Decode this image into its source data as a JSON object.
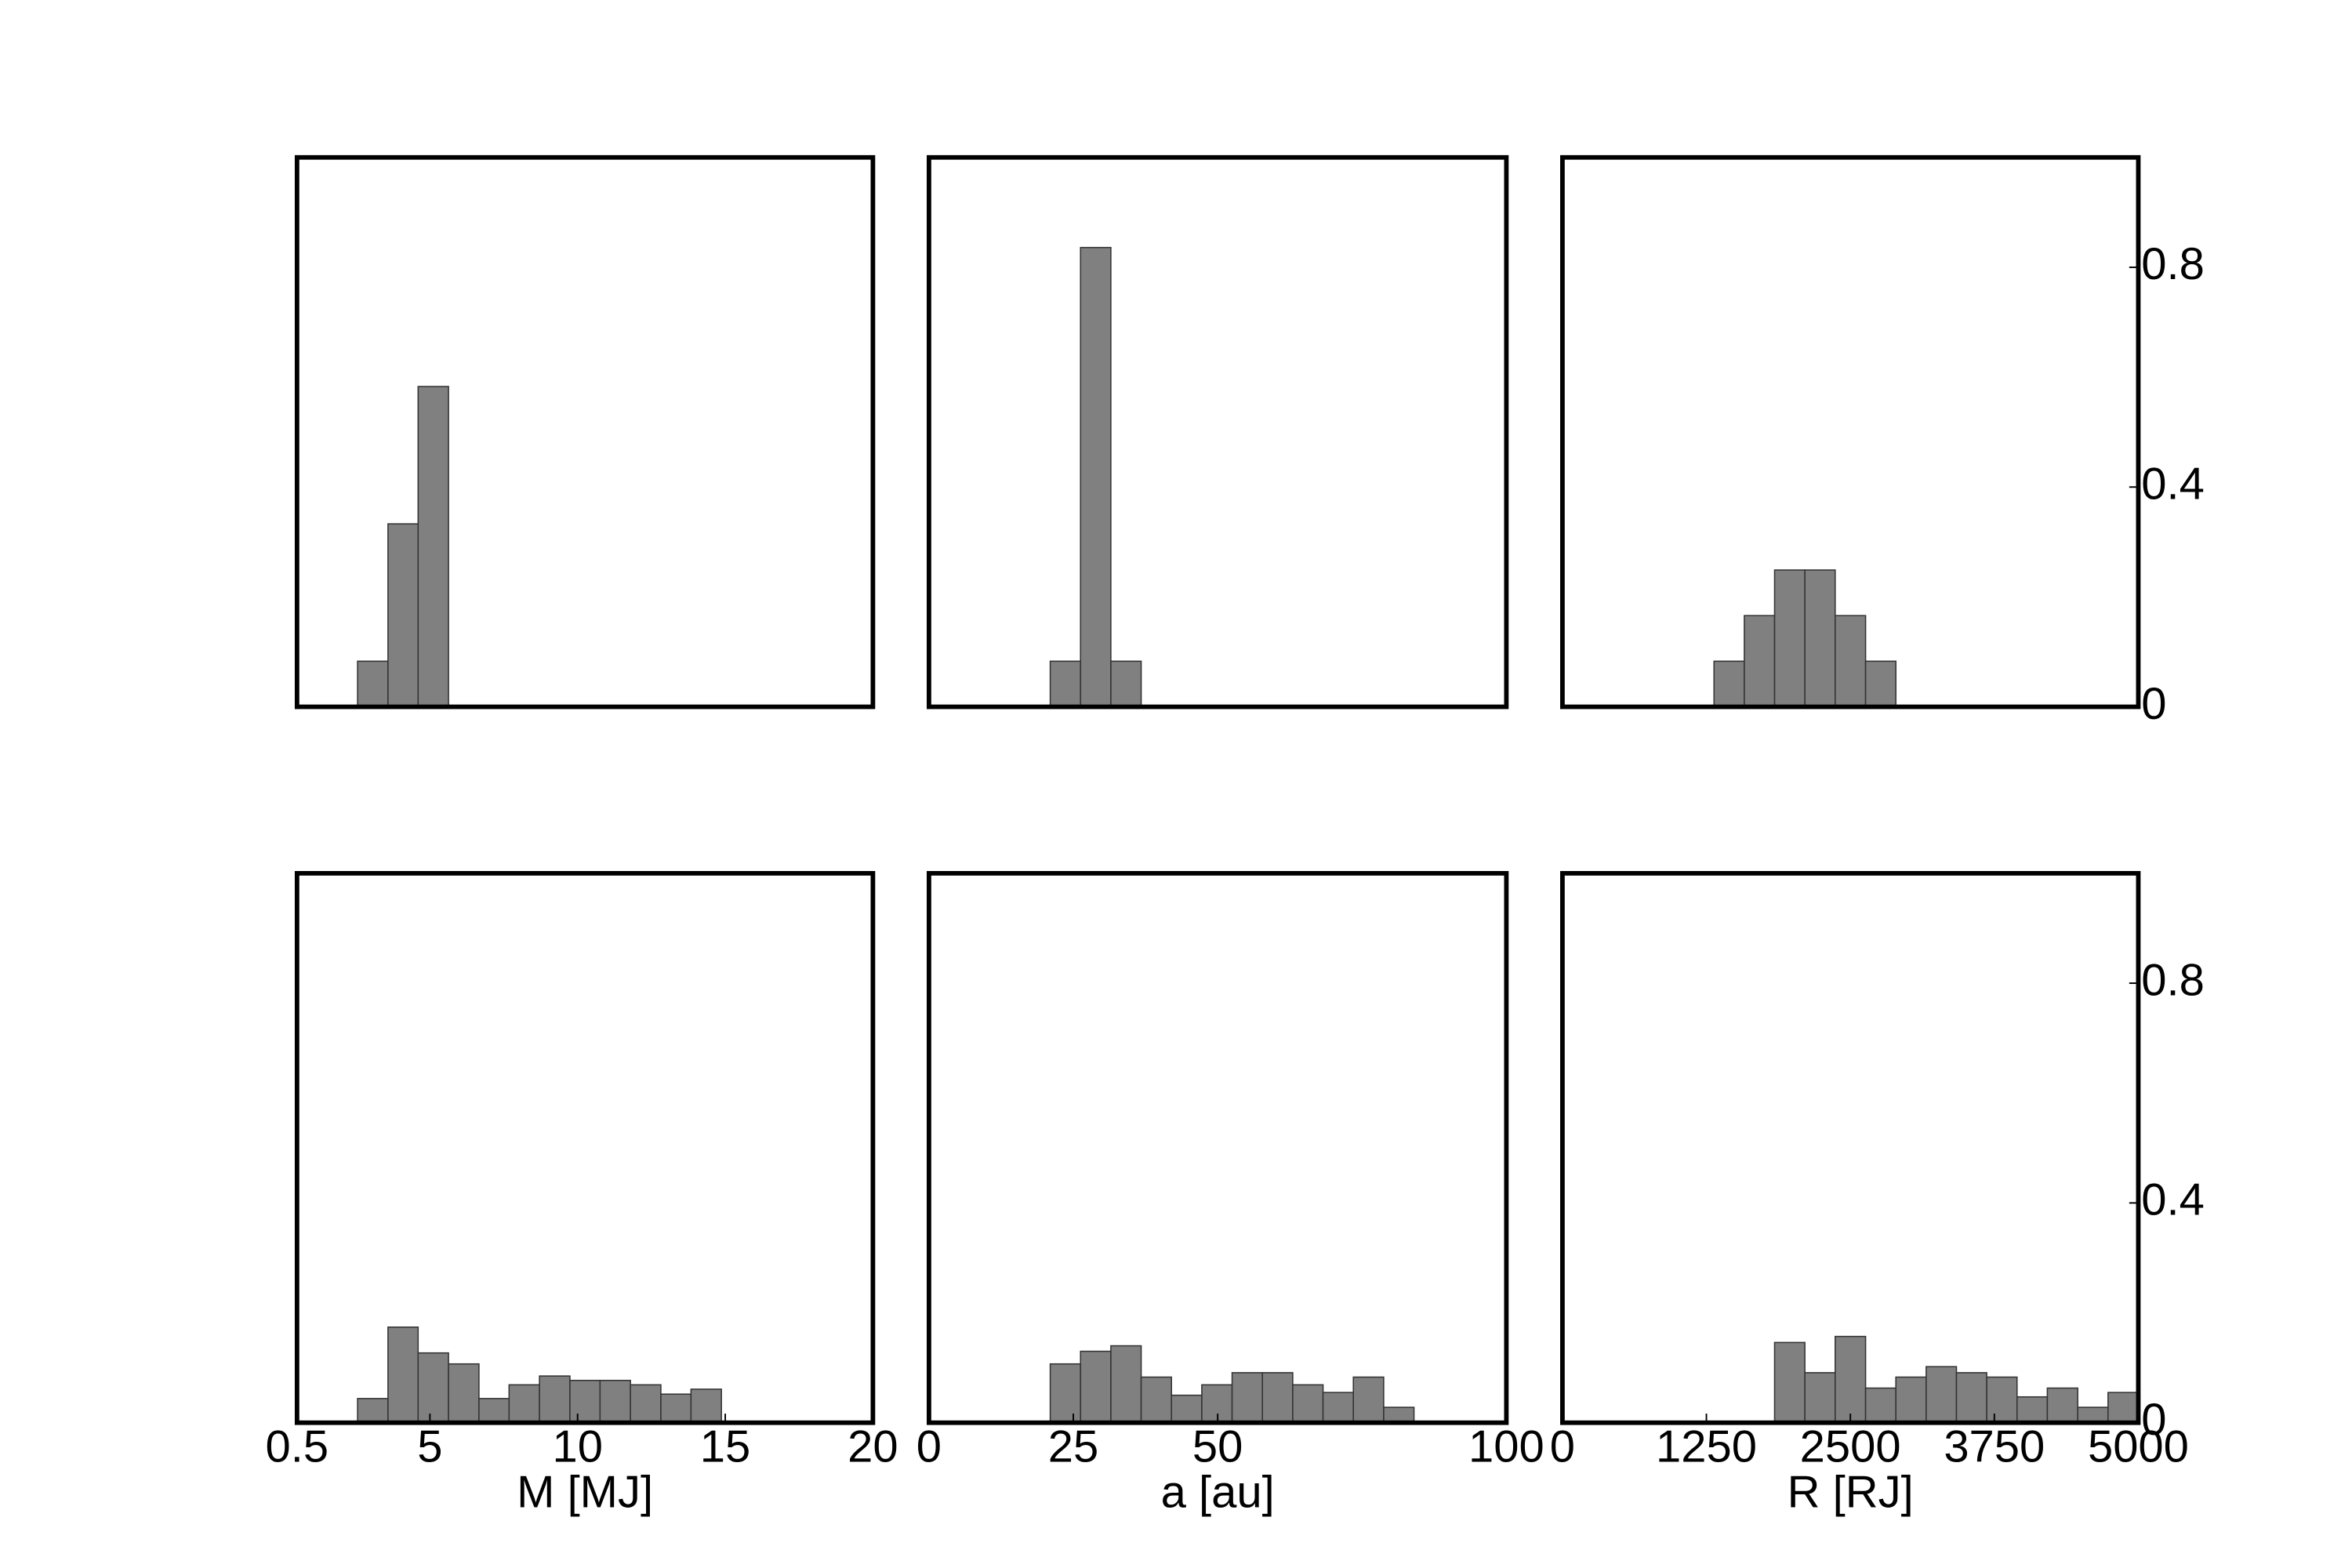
{
  "chart_data": [
    {
      "type": "histogram",
      "bins": [
        2.55,
        3.58,
        4.6,
        5.63
      ],
      "values": [
        0.083,
        0.333,
        0.583
      ],
      "color": "#808080",
      "xlim": [
        0.5,
        20
      ],
      "ylim": [
        0,
        1
      ]
    },
    {
      "type": "histogram",
      "bins": [
        21,
        26.25,
        31.5,
        36.75
      ],
      "values": [
        0.083,
        0.836,
        0.083
      ],
      "color": "#808080",
      "xlim": [
        0,
        100
      ],
      "ylim": [
        0,
        1
      ]
    },
    {
      "type": "histogram",
      "bins": [
        1316,
        1579,
        1842,
        2105,
        2368,
        2632,
        2895
      ],
      "values": [
        0.083,
        0.166,
        0.249,
        0.249,
        0.166,
        0.083
      ],
      "color": "#808080",
      "xlim": [
        0,
        5000
      ],
      "ylim": [
        0,
        1
      ],
      "yticks": [
        0,
        0.4,
        0.8
      ]
    },
    {
      "type": "histogram",
      "bins": [
        2.55,
        3.58,
        4.6,
        5.63,
        6.66,
        7.68,
        8.71,
        9.74,
        10.76,
        11.79,
        12.82,
        13.84,
        14.87
      ],
      "values": [
        0.044,
        0.174,
        0.127,
        0.107,
        0.044,
        0.069,
        0.085,
        0.077,
        0.077,
        0.069,
        0.052,
        0.061
      ],
      "color": "#808080",
      "xlim": [
        0.5,
        20
      ],
      "ylim": [
        0,
        1
      ],
      "xticks": [
        0.5,
        5,
        10,
        15,
        20
      ],
      "xlabel": "M [MJ]"
    },
    {
      "type": "histogram",
      "bins": [
        21,
        26.25,
        31.5,
        36.75,
        42,
        47.25,
        52.5,
        57.75,
        63,
        68.25,
        73.5,
        78.75,
        84
      ],
      "values": [
        0.107,
        0.13,
        0.14,
        0.083,
        0.05,
        0.069,
        0.091,
        0.091,
        0.069,
        0.055,
        0.083,
        0.028
      ],
      "color": "#808080",
      "xlim": [
        0,
        100
      ],
      "ylim": [
        0,
        1
      ],
      "xticks": [
        0,
        25,
        50,
        100
      ],
      "xlabel": "a [au]"
    },
    {
      "type": "histogram",
      "bins": [
        1842,
        2105,
        2368,
        2632,
        2895,
        3158,
        3421,
        3684,
        3947,
        4210,
        4474,
        4737,
        5000
      ],
      "values": [
        0.146,
        0.091,
        0.157,
        0.063,
        0.083,
        0.102,
        0.091,
        0.083,
        0.047,
        0.063,
        0.028,
        0.055
      ],
      "color": "#808080",
      "xlim": [
        0,
        5000
      ],
      "ylim": [
        0,
        1
      ],
      "xticks": [
        0,
        1250,
        2500,
        3750,
        5000
      ],
      "yticks": [
        0,
        0.4,
        0.8
      ],
      "xlabel": "R [RJ]"
    }
  ]
}
